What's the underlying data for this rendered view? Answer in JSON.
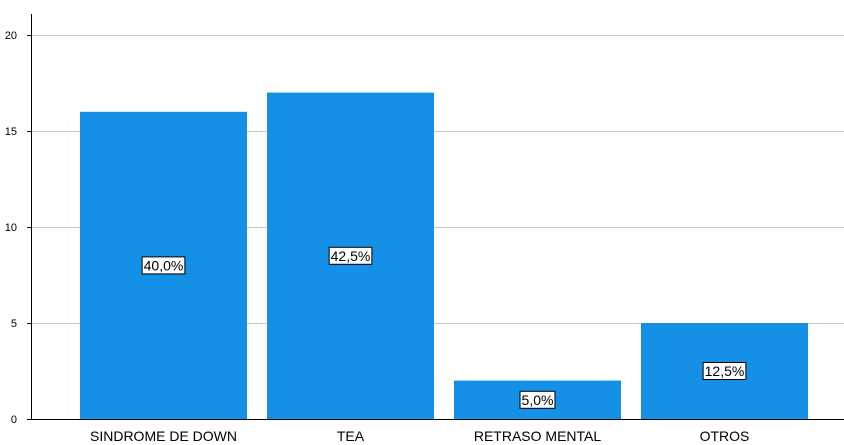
{
  "chart_data": {
    "type": "bar",
    "categories": [
      "SINDROME DE DOWN",
      "TEA",
      "RETRASO MENTAL",
      "OTROS"
    ],
    "values": [
      16,
      17,
      2,
      5
    ],
    "data_labels": [
      "40,0%",
      "42,5%",
      "5,0%",
      "12,5%"
    ],
    "ylim": [
      0,
      20
    ],
    "yticks": [
      0,
      5,
      10,
      15,
      20
    ],
    "grid": true,
    "title": "",
    "xlabel": "",
    "ylabel": "",
    "colors": {
      "bar": "#1490e6",
      "grid": "#cccccc",
      "axis": "#000000",
      "label_box_fill": "#ffffff",
      "label_box_stroke": "#000000"
    }
  }
}
